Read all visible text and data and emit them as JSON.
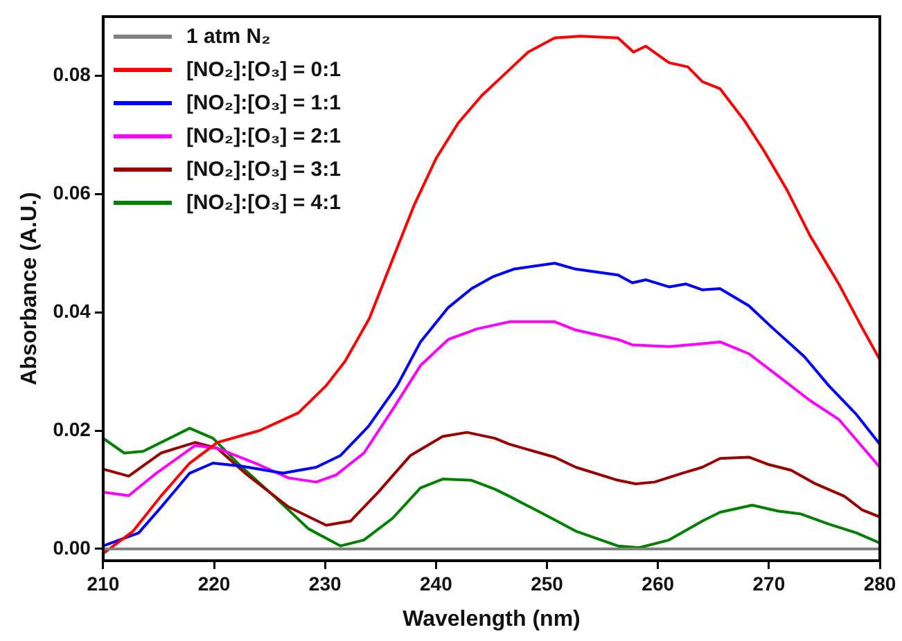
{
  "chart_data": {
    "type": "line",
    "xlabel": "Wavelength (nm)",
    "ylabel": "Absorbance (A.U.)",
    "xlim": [
      210,
      280
    ],
    "xticks": [
      210,
      220,
      230,
      240,
      250,
      260,
      270,
      280
    ],
    "ylim": [
      -0.002,
      0.09
    ],
    "yticks": [
      {
        "value": 0,
        "label": "0.00"
      },
      {
        "value": 0.02,
        "label": "0.02"
      },
      {
        "value": 0.04,
        "label": "0.04"
      },
      {
        "value": 0.06,
        "label": "0.06"
      },
      {
        "value": 0.08,
        "label": "0.08"
      }
    ],
    "grid": false,
    "legend": "top left",
    "marker": "none",
    "line_style": "solid",
    "series": [
      {
        "name": "1 atm N₂",
        "color": "#808080",
        "x": [
          210,
          280
        ],
        "values": [
          0,
          0
        ]
      },
      {
        "name": "[NO₂]:[O₃] = 0:1",
        "color": "#ff0000",
        "x": [
          210,
          212.7,
          215.2,
          217.8,
          220.3,
          224.1,
          227.6,
          230.1,
          231.8,
          234,
          236.1,
          238,
          240,
          242,
          244.1,
          246.6,
          248.3,
          250.7,
          253,
          256.4,
          257.8,
          258.9,
          261,
          262.7,
          264,
          265.6,
          267.8,
          269.5,
          271.6,
          273.7,
          276.3,
          278.4,
          280
        ],
        "values": [
          -0.0008,
          0.003,
          0.0089,
          0.0145,
          0.018,
          0.02,
          0.023,
          0.0276,
          0.0317,
          0.039,
          0.049,
          0.058,
          0.066,
          0.072,
          0.0766,
          0.081,
          0.084,
          0.0864,
          0.0867,
          0.0864,
          0.084,
          0.085,
          0.0822,
          0.0815,
          0.079,
          0.0778,
          0.0724,
          0.0675,
          0.0608,
          0.053,
          0.0448,
          0.0374,
          0.032
        ]
      },
      {
        "name": "[NO₂]:[O₃] = 1:1",
        "color": "#0000ff",
        "x": [
          210,
          213.2,
          215.2,
          217.8,
          219.9,
          222.4,
          226.2,
          229.2,
          231.4,
          233.9,
          236.5,
          238.6,
          241.1,
          243.2,
          245.1,
          247,
          250.7,
          252.6,
          256.4,
          257.7,
          258.9,
          261,
          262.5,
          264,
          265.6,
          268.2,
          270.3,
          273.2,
          275.4,
          277.9,
          280
        ],
        "values": [
          0.0005,
          0.0027,
          0.007,
          0.0128,
          0.0145,
          0.014,
          0.0128,
          0.0138,
          0.0158,
          0.0207,
          0.0276,
          0.035,
          0.0408,
          0.044,
          0.046,
          0.0473,
          0.0483,
          0.0473,
          0.0463,
          0.045,
          0.0455,
          0.0443,
          0.0448,
          0.0438,
          0.044,
          0.0411,
          0.0374,
          0.0325,
          0.0276,
          0.0227,
          0.0177
        ]
      },
      {
        "name": "[NO₂]:[O₃] = 2:1",
        "color": "#ff00ff",
        "x": [
          210,
          212.3,
          214.8,
          218.3,
          220.3,
          223.7,
          226.7,
          229.2,
          231,
          233.5,
          236.1,
          238.6,
          241.1,
          243.7,
          246.6,
          250.7,
          252.6,
          256.4,
          257.7,
          261,
          264,
          265.6,
          268.2,
          270.3,
          273.7,
          276.3,
          280
        ],
        "values": [
          0.0096,
          0.009,
          0.0128,
          0.0175,
          0.017,
          0.0145,
          0.012,
          0.0113,
          0.0125,
          0.0162,
          0.0236,
          0.031,
          0.0354,
          0.0372,
          0.0384,
          0.0384,
          0.037,
          0.0354,
          0.0345,
          0.0342,
          0.0347,
          0.035,
          0.033,
          0.03,
          0.0251,
          0.0219,
          0.0138
        ]
      },
      {
        "name": "[NO₂]:[O₃] = 3:1",
        "color": "#990000",
        "x": [
          210,
          212.3,
          215.2,
          218.3,
          220.3,
          222.8,
          226.7,
          230.1,
          232.3,
          234.8,
          237.7,
          240.6,
          242.8,
          245.3,
          246.6,
          250.7,
          252.6,
          256.4,
          258,
          259.7,
          262.2,
          264,
          265.6,
          268.2,
          269.9,
          272,
          274.2,
          276.8,
          278.4,
          280
        ],
        "values": [
          0.0135,
          0.0123,
          0.0162,
          0.018,
          0.017,
          0.0128,
          0.0071,
          0.004,
          0.0047,
          0.0096,
          0.0158,
          0.019,
          0.0197,
          0.0187,
          0.0177,
          0.0155,
          0.0138,
          0.0116,
          0.011,
          0.0113,
          0.0128,
          0.0138,
          0.0153,
          0.0155,
          0.0143,
          0.0133,
          0.011,
          0.0089,
          0.0066,
          0.0054
        ]
      },
      {
        "name": "[NO₂]:[O₃] = 4:1",
        "color": "#008000",
        "x": [
          210,
          211.9,
          213.6,
          217.8,
          219.9,
          222.4,
          225.4,
          228.5,
          231.4,
          233.5,
          236.1,
          238.6,
          240.6,
          243.2,
          245.3,
          246.6,
          250.4,
          252.6,
          256.4,
          258.3,
          261,
          264,
          265.6,
          268.5,
          270.8,
          272.9,
          275.4,
          277.9,
          280
        ],
        "values": [
          0.0187,
          0.0162,
          0.0165,
          0.0204,
          0.0187,
          0.014,
          0.0089,
          0.0034,
          0.0005,
          0.0015,
          0.0052,
          0.0103,
          0.0118,
          0.0116,
          0.0101,
          0.0089,
          0.0052,
          0.003,
          0.0005,
          0.0002,
          0.0015,
          0.0047,
          0.0062,
          0.0074,
          0.0064,
          0.0059,
          0.0042,
          0.0027,
          0.001
        ]
      }
    ]
  }
}
